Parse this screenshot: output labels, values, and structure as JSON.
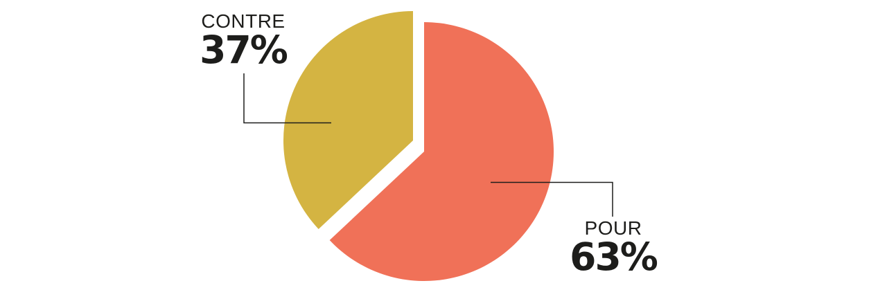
{
  "chart_data": {
    "type": "pie",
    "title": "",
    "series": [
      {
        "label": "POUR",
        "value": 63,
        "value_label": "63%",
        "color": "#F07158"
      },
      {
        "label": "CONTRE",
        "value": 37,
        "value_label": "37%",
        "color": "#D4B442"
      }
    ],
    "start_angle_deg": 0,
    "direction": "clockwise",
    "exploded": true,
    "background_color": "#FFFFFF",
    "text_color": "#1D1D1B",
    "connector_color": "#1D1D1B",
    "legend_position": "callout-labels"
  }
}
